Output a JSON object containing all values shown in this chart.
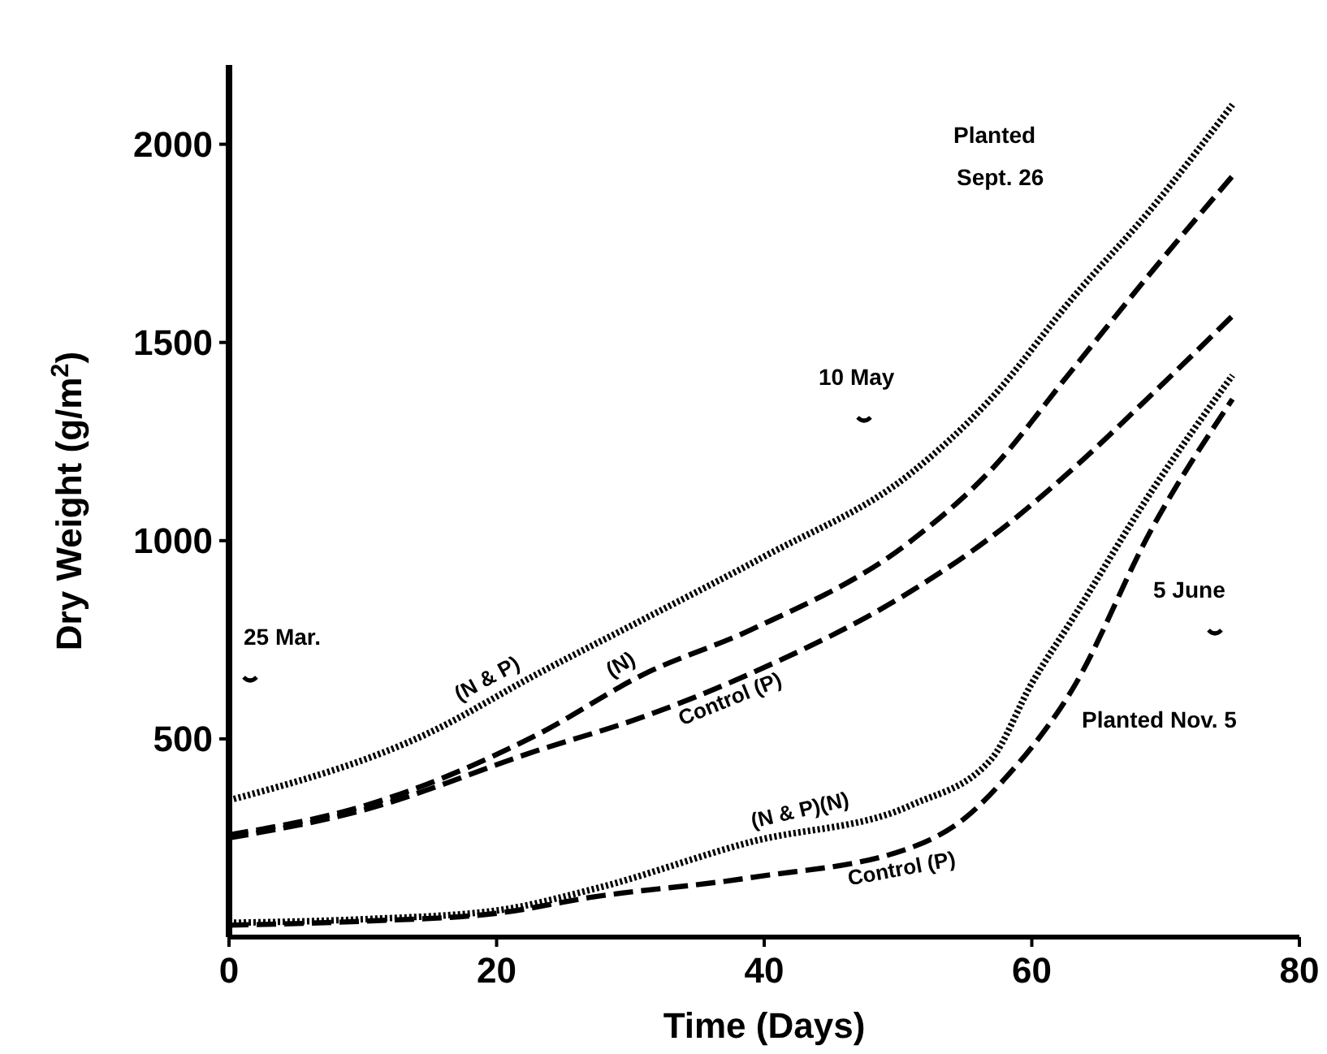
{
  "chart_data": {
    "type": "line",
    "xlabel": "Time (Days)",
    "ylabel": "Dry Weight (g/m$^{2}$)",
    "xlim": [
      0,
      80
    ],
    "ylim": [
      0,
      2200
    ],
    "xticks": [
      0,
      20,
      40,
      60,
      80
    ],
    "yticks": [
      500,
      1000,
      1500,
      2000
    ],
    "grid": false,
    "series": [
      {
        "name": "(N & P)",
        "color": "#000000",
        "line_style": "dotted",
        "x": [
          0,
          15,
          23,
          31,
          40,
          51,
          57,
          63,
          69,
          75
        ],
        "values": [
          345,
          516,
          663,
          802,
          960,
          1171,
          1360,
          1610,
          1840,
          2100
        ]
      },
      {
        "name": "(N)",
        "color": "#000000",
        "line_style": "dashed",
        "x": [
          0,
          10,
          23,
          31,
          39,
          51,
          57,
          63,
          69,
          75
        ],
        "values": [
          258,
          330,
          510,
          663,
          775,
          1000,
          1180,
          1430,
          1680,
          1920
        ]
      },
      {
        "name": "Control (P)",
        "color": "#000000",
        "line_style": "dashed",
        "x": [
          0,
          10,
          23,
          31,
          39,
          51,
          57,
          63,
          69,
          75
        ],
        "values": [
          250,
          320,
          470,
          556,
          665,
          873,
          1010,
          1179,
          1370,
          1567
        ]
      },
      {
        "name": "(N & P)(N)",
        "color": "#000000",
        "line_style": "dotted",
        "x": [
          0,
          10,
          20,
          27,
          39,
          51,
          57,
          60,
          63,
          69,
          75
        ],
        "values": [
          36,
          45,
          67,
          119,
          240,
          333,
          450,
          640,
          800,
          1127,
          1417
        ]
      },
      {
        "name": "Control (P)",
        "color": "#000000",
        "line_style": "dashed",
        "x": [
          0,
          10,
          20,
          27,
          39,
          51,
          55,
          58,
          63,
          69,
          75
        ],
        "values": [
          30,
          40,
          60,
          100,
          150,
          226,
          300,
          400,
          623,
          1032,
          1357
        ]
      }
    ],
    "annotations": [
      "Planted Sept. 26",
      "10 May",
      "25 Mar.",
      "5 June",
      "Planted Nov. 5"
    ]
  }
}
